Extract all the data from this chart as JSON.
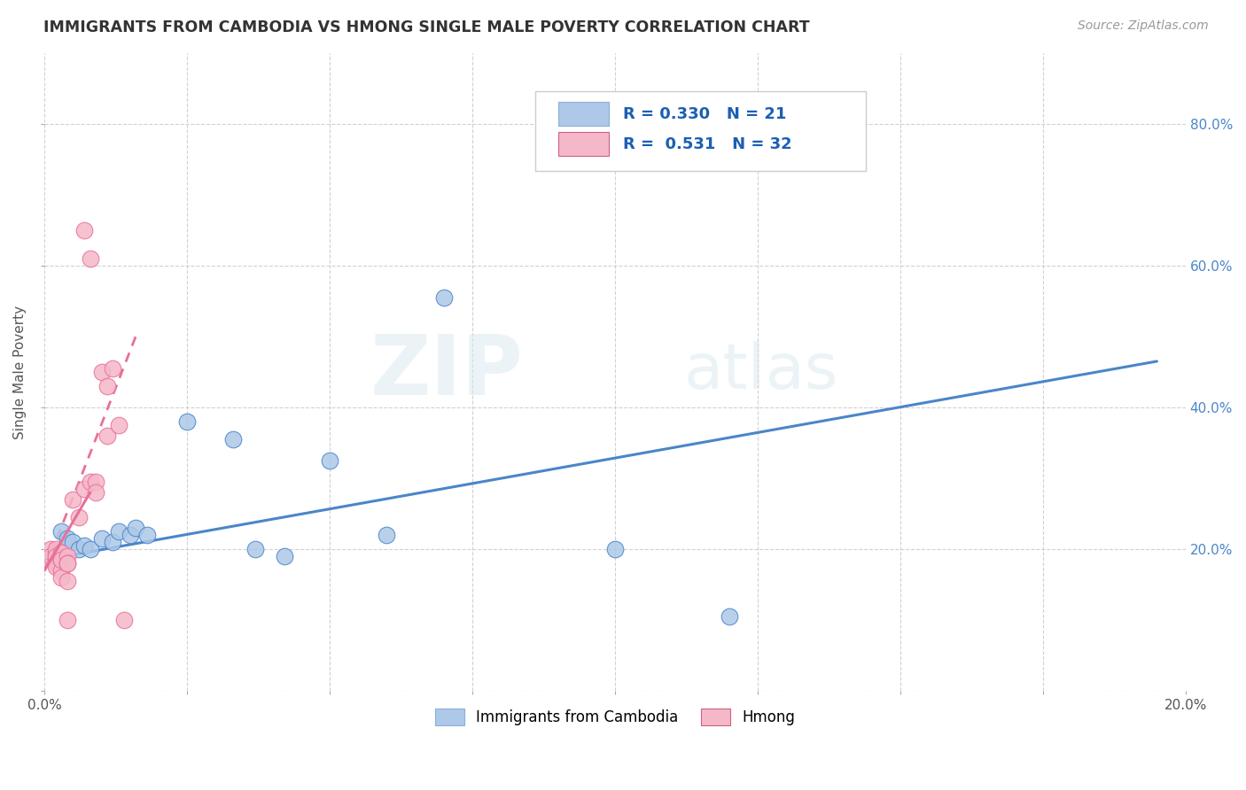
{
  "title": "IMMIGRANTS FROM CAMBODIA VS HMONG SINGLE MALE POVERTY CORRELATION CHART",
  "source": "Source: ZipAtlas.com",
  "ylabel": "Single Male Poverty",
  "xlim": [
    0.0,
    0.2
  ],
  "ylim": [
    0.0,
    0.9
  ],
  "xticks": [
    0.0,
    0.025,
    0.05,
    0.075,
    0.1,
    0.125,
    0.15,
    0.175,
    0.2
  ],
  "xtick_labels_bottom": [
    "0.0%",
    "",
    "",
    "",
    "",
    "",
    "",
    "",
    "20.0%"
  ],
  "yticks": [
    0.0,
    0.2,
    0.4,
    0.6,
    0.8
  ],
  "right_ytick_labels": [
    "",
    "20.0%",
    "40.0%",
    "60.0%",
    "80.0%"
  ],
  "cambodia_color": "#adc8e8",
  "hmong_color": "#f5b8c8",
  "cambodia_R": "0.330",
  "cambodia_N": "21",
  "hmong_R": "0.531",
  "hmong_N": "32",
  "trend_cambodia_color": "#4a86c8",
  "trend_hmong_color": "#e87098",
  "watermark_zip": "ZIP",
  "watermark_atlas": "atlas",
  "background_color": "#ffffff",
  "grid_color": "#cccccc",
  "cambodia_points": [
    [
      0.003,
      0.225
    ],
    [
      0.004,
      0.215
    ],
    [
      0.005,
      0.21
    ],
    [
      0.006,
      0.2
    ],
    [
      0.007,
      0.205
    ],
    [
      0.008,
      0.2
    ],
    [
      0.01,
      0.215
    ],
    [
      0.012,
      0.21
    ],
    [
      0.013,
      0.225
    ],
    [
      0.015,
      0.22
    ],
    [
      0.016,
      0.23
    ],
    [
      0.018,
      0.22
    ],
    [
      0.025,
      0.38
    ],
    [
      0.033,
      0.355
    ],
    [
      0.037,
      0.2
    ],
    [
      0.042,
      0.19
    ],
    [
      0.05,
      0.325
    ],
    [
      0.06,
      0.22
    ],
    [
      0.07,
      0.555
    ],
    [
      0.1,
      0.2
    ],
    [
      0.12,
      0.105
    ]
  ],
  "hmong_points": [
    [
      0.001,
      0.2
    ],
    [
      0.001,
      0.19
    ],
    [
      0.002,
      0.185
    ],
    [
      0.002,
      0.195
    ],
    [
      0.002,
      0.18
    ],
    [
      0.002,
      0.2
    ],
    [
      0.002,
      0.19
    ],
    [
      0.002,
      0.175
    ],
    [
      0.003,
      0.185
    ],
    [
      0.003,
      0.195
    ],
    [
      0.003,
      0.17
    ],
    [
      0.003,
      0.16
    ],
    [
      0.003,
      0.185
    ],
    [
      0.004,
      0.19
    ],
    [
      0.004,
      0.18
    ],
    [
      0.004,
      0.18
    ],
    [
      0.004,
      0.155
    ],
    [
      0.004,
      0.1
    ],
    [
      0.005,
      0.27
    ],
    [
      0.006,
      0.245
    ],
    [
      0.007,
      0.65
    ],
    [
      0.007,
      0.285
    ],
    [
      0.008,
      0.295
    ],
    [
      0.008,
      0.61
    ],
    [
      0.009,
      0.295
    ],
    [
      0.009,
      0.28
    ],
    [
      0.01,
      0.45
    ],
    [
      0.011,
      0.43
    ],
    [
      0.011,
      0.36
    ],
    [
      0.012,
      0.455
    ],
    [
      0.013,
      0.375
    ],
    [
      0.014,
      0.1
    ]
  ],
  "cambodia_trendline_x": [
    0.0,
    0.195
  ],
  "cambodia_trendline_y": [
    0.185,
    0.465
  ],
  "hmong_trendline_x": [
    0.0,
    0.016
  ],
  "hmong_trendline_y": [
    0.17,
    0.5
  ]
}
